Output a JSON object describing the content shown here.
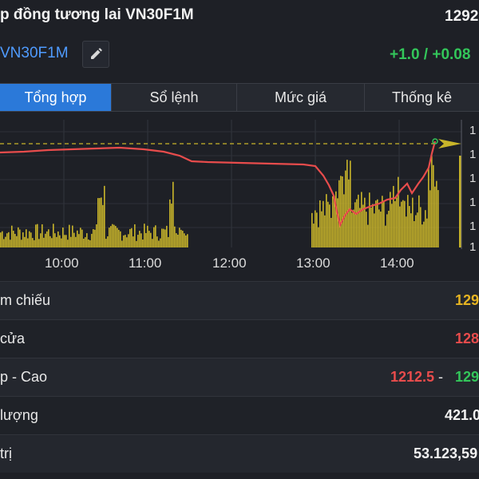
{
  "header": {
    "title": "p đồng tương lai VN30F1M",
    "price": "1292",
    "symbol": "VN30F1M",
    "change": "+1.0 / +0.08"
  },
  "tabs": [
    {
      "label": "Tổng hợp",
      "active": true
    },
    {
      "label": "Sổ lệnh",
      "active": false
    },
    {
      "label": "Mức giá",
      "active": false
    },
    {
      "label": "Thống kê",
      "active": false
    }
  ],
  "chart_data": {
    "type": "line",
    "x_ticks": [
      "10:00",
      "11:00",
      "12:00",
      "13:00",
      "14:00"
    ],
    "y_tick_labels": [
      "1",
      "1",
      "1",
      "1",
      "1",
      "1"
    ],
    "reference_line": "dashed",
    "colors": {
      "price_line": "#e84c4c",
      "volume": "#c9b52a",
      "reference": "#c9b52a",
      "marker": "#c9b52a"
    }
  },
  "stats": [
    {
      "label": "m chiếu",
      "value": "129",
      "value_color": "#e6b422"
    },
    {
      "label": "cửa",
      "value": "128",
      "value_color": "#e84c4c"
    },
    {
      "label": "p - Cao",
      "value_low": "1212.5",
      "separator": " - ",
      "value_high": "129",
      "low_color": "#e84c4c",
      "high_color": "#33c65a"
    },
    {
      "label": "lượng",
      "value": "421.0",
      "value_color": "#f2f2f2"
    },
    {
      "label": "trị",
      "value": "53.123,59",
      "value_color": "#f2f2f2"
    }
  ]
}
